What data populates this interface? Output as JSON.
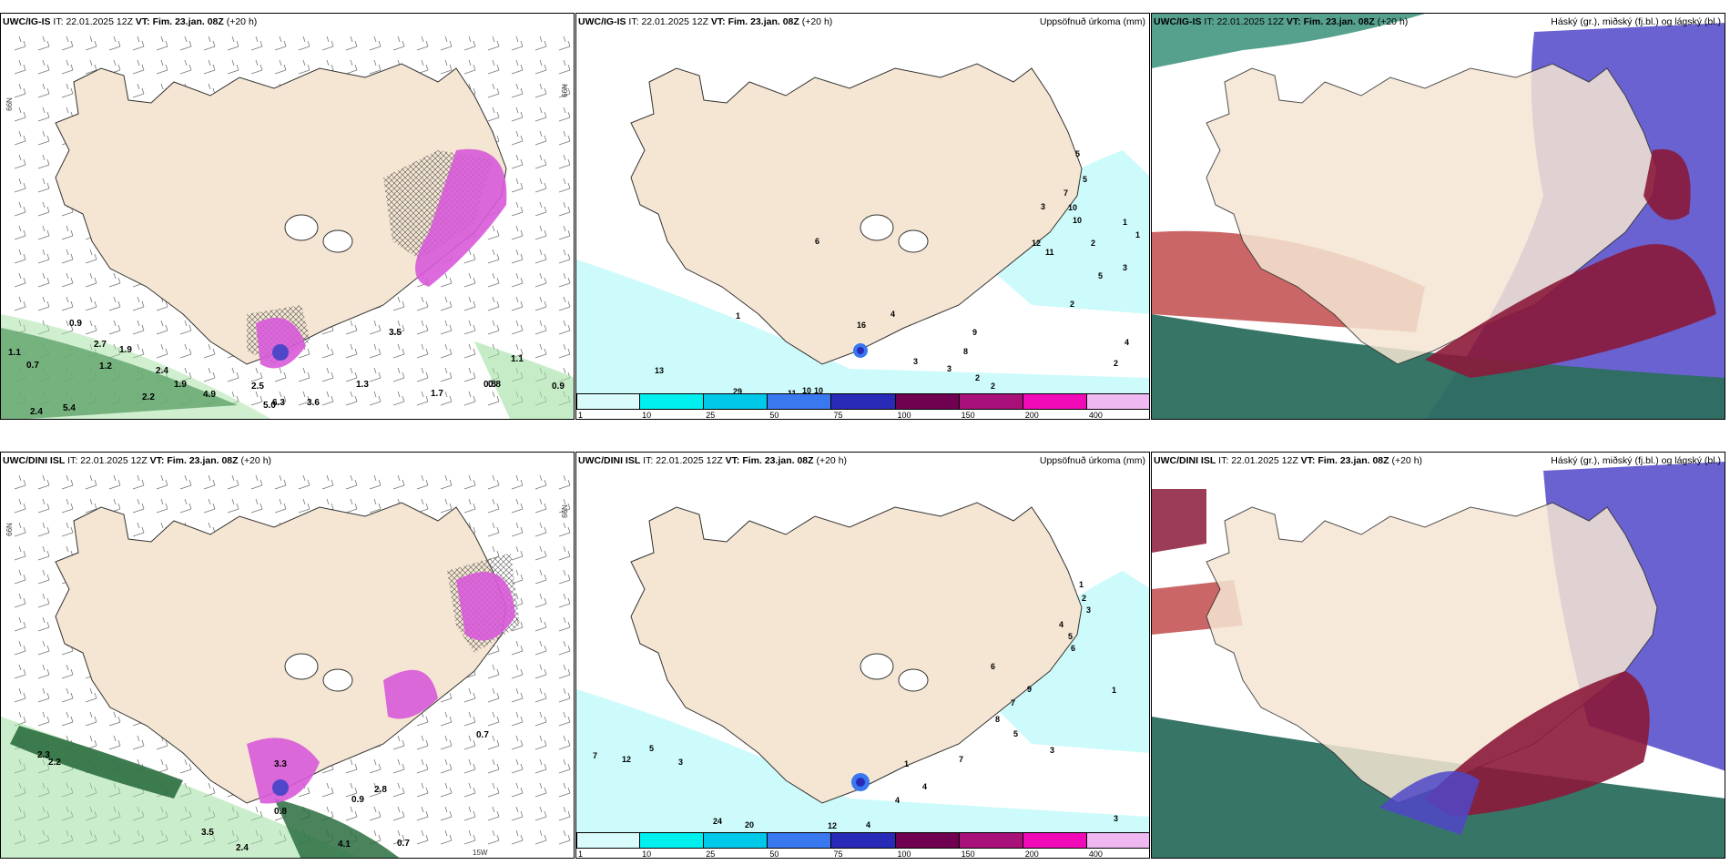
{
  "panels": [
    {
      "model": "UWC/IG-IS",
      "it_label": "IT:",
      "it": "22.01.2025 12Z",
      "vt_label": "VT:",
      "vt": "Fim. 23.jan. 08Z",
      "lead": "(+20 h)",
      "right": ""
    },
    {
      "model": "UWC/IG-IS",
      "it_label": "IT:",
      "it": "22.01.2025 12Z",
      "vt_label": "VT:",
      "vt": "Fim. 23.jan. 08Z",
      "lead": "(+20 h)",
      "right": "Uppsöfnuð úrkoma (mm)"
    },
    {
      "model": "UWC/IG-IS",
      "it_label": "IT:",
      "it": "22.01.2025 12Z",
      "vt_label": "VT:",
      "vt": "Fim. 23.jan. 08Z",
      "lead": "(+20 h)",
      "right": "Háský (gr.), miðský (fj.bl.) og lágský (bl.)"
    },
    {
      "model": "UWC/DINI ISL",
      "it_label": "IT:",
      "it": "22.01.2025 12Z",
      "vt_label": "VT:",
      "vt": "Fim. 23.jan. 08Z",
      "lead": "(+20 h)",
      "right": ""
    },
    {
      "model": "UWC/DINI ISL",
      "it_label": "IT:",
      "it": "22.01.2025 12Z",
      "vt_label": "VT:",
      "vt": "Fim. 23.jan. 08Z",
      "lead": "(+20 h)",
      "right": "Uppsöfnuð úrkoma (mm)"
    },
    {
      "model": "UWC/DINI ISL",
      "it_label": "IT:",
      "it": "22.01.2025 12Z",
      "vt_label": "VT:",
      "vt": "Fim. 23.jan. 08Z",
      "lead": "(+20 h)",
      "right": "Háský (gr.), miðský (fj.bl.) og lágský (bl.)"
    }
  ],
  "grid_labels": {
    "lat_left": "66N",
    "lat_right": "66N",
    "lat_right_lower": "64N",
    "lon": "15W",
    "lat_lower_left": "65N"
  },
  "colorbar": {
    "levels": [
      "1",
      "10",
      "25",
      "50",
      "75",
      "100",
      "150",
      "200",
      "400"
    ],
    "colors": [
      "#d9fbfb",
      "#00f0f0",
      "#00c8e8",
      "#3a78f0",
      "#2a2ab8",
      "#700050",
      "#a8107a",
      "#f00ab8",
      "#f0b8f0"
    ]
  },
  "precip_labels_top": [
    "0.9",
    "2.7",
    "1.9",
    "0.7",
    "1.1",
    "1.2",
    "2.4",
    "2.2",
    "5.4",
    "2.4",
    "4.9",
    "1.9",
    "2.5",
    "5.0",
    "6.3",
    "3.6",
    "3.5",
    "1.3",
    "0.8",
    "0.8",
    "1.7",
    "1.1",
    "0.9"
  ],
  "precip_labels_bottom": [
    "2.3",
    "2.2",
    "3.3",
    "3.5",
    "2.4",
    "4.1",
    "0.7",
    "0.9",
    "2.8",
    "0.7",
    "0.8"
  ],
  "accum_labels_top": [
    "5",
    "5",
    "7",
    "10",
    "10",
    "12",
    "11",
    "3",
    "1",
    "1",
    "2",
    "3",
    "2",
    "5",
    "4",
    "2",
    "9",
    "8",
    "3",
    "2",
    "2",
    "3",
    "16",
    "13",
    "29",
    "11",
    "10",
    "10",
    "1",
    "6",
    "4"
  ],
  "accum_labels_bottom": [
    "1",
    "2",
    "3",
    "4",
    "5",
    "6",
    "9",
    "7",
    "8",
    "6",
    "5",
    "3",
    "7",
    "12",
    "24",
    "20",
    "12",
    "4",
    "4",
    "7",
    "5",
    "1",
    "3",
    "1",
    "4",
    "3"
  ],
  "colors": {
    "land": "#f5e6d3",
    "coast": "#333333",
    "cyan_light": "#cdfafa",
    "green": "#2c6e3f",
    "violet": "#5046c8",
    "maroon": "#8b1a3a"
  }
}
